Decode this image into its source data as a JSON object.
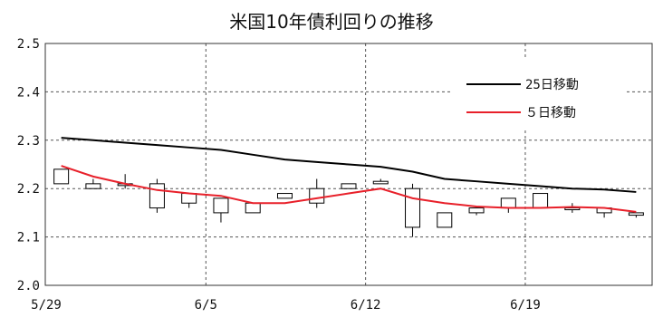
{
  "chart_data": {
    "type": "candlestick",
    "title": "米国10年債利回りの推移",
    "xlabel": "",
    "ylabel": "",
    "ylim": [
      2.0,
      2.5
    ],
    "y_ticks": [
      "2.0",
      "2.1",
      "2.2",
      "2.3",
      "2.4",
      "2.5"
    ],
    "x_ticks": [
      "5/29",
      "6/5",
      "6/12",
      "6/19"
    ],
    "grid": true,
    "legend_position": "top-right",
    "colors": {
      "up": "#ffffff",
      "down": "#000000",
      "ma25": "#000000",
      "ma5": "#e8202a",
      "grid": "#555555"
    },
    "candles": [
      {
        "open": 2.21,
        "high": 2.24,
        "low": 2.21,
        "close": 2.24
      },
      {
        "open": 2.2,
        "high": 2.22,
        "low": 2.2,
        "close": 2.21
      },
      {
        "open": 2.21,
        "high": 2.23,
        "low": 2.2,
        "close": 2.21
      },
      {
        "open": 2.16,
        "high": 2.22,
        "low": 2.15,
        "close": 2.21
      },
      {
        "open": 2.17,
        "high": 2.19,
        "low": 2.16,
        "close": 2.19
      },
      {
        "open": 2.15,
        "high": 2.18,
        "low": 2.13,
        "close": 2.18
      },
      {
        "open": 2.15,
        "high": 2.17,
        "low": 2.15,
        "close": 2.17
      },
      {
        "open": 2.18,
        "high": 2.19,
        "low": 2.18,
        "close": 2.19
      },
      {
        "open": 2.17,
        "high": 2.22,
        "low": 2.16,
        "close": 2.2
      },
      {
        "open": 2.2,
        "high": 2.21,
        "low": 2.2,
        "close": 2.21
      },
      {
        "open": 2.21,
        "high": 2.22,
        "low": 2.21,
        "close": 2.215
      },
      {
        "open": 2.12,
        "high": 2.21,
        "low": 2.1,
        "close": 2.2
      },
      {
        "open": 2.12,
        "high": 2.15,
        "low": 2.12,
        "close": 2.15
      },
      {
        "open": 2.15,
        "high": 2.16,
        "low": 2.145,
        "close": 2.16
      },
      {
        "open": 2.16,
        "high": 2.18,
        "low": 2.15,
        "close": 2.18
      },
      {
        "open": 2.16,
        "high": 2.19,
        "low": 2.16,
        "close": 2.19
      },
      {
        "open": 2.16,
        "high": 2.17,
        "low": 2.15,
        "close": 2.16
      },
      {
        "open": 2.15,
        "high": 2.16,
        "low": 2.14,
        "close": 2.16
      },
      {
        "open": 2.145,
        "high": 2.15,
        "low": 2.14,
        "close": 2.15
      }
    ],
    "series": [
      {
        "name": "25日移動",
        "color": "#000000",
        "values": [
          2.305,
          2.3,
          2.295,
          2.29,
          2.285,
          2.28,
          2.27,
          2.26,
          2.255,
          2.25,
          2.245,
          2.235,
          2.22,
          2.215,
          2.21,
          2.205,
          2.2,
          2.198,
          2.193
        ]
      },
      {
        "name": "５日移動",
        "color": "#e8202a",
        "values": [
          2.247,
          2.225,
          2.21,
          2.197,
          2.19,
          2.185,
          2.17,
          2.17,
          2.18,
          2.19,
          2.2,
          2.18,
          2.17,
          2.163,
          2.16,
          2.16,
          2.162,
          2.16,
          2.152
        ]
      }
    ]
  }
}
